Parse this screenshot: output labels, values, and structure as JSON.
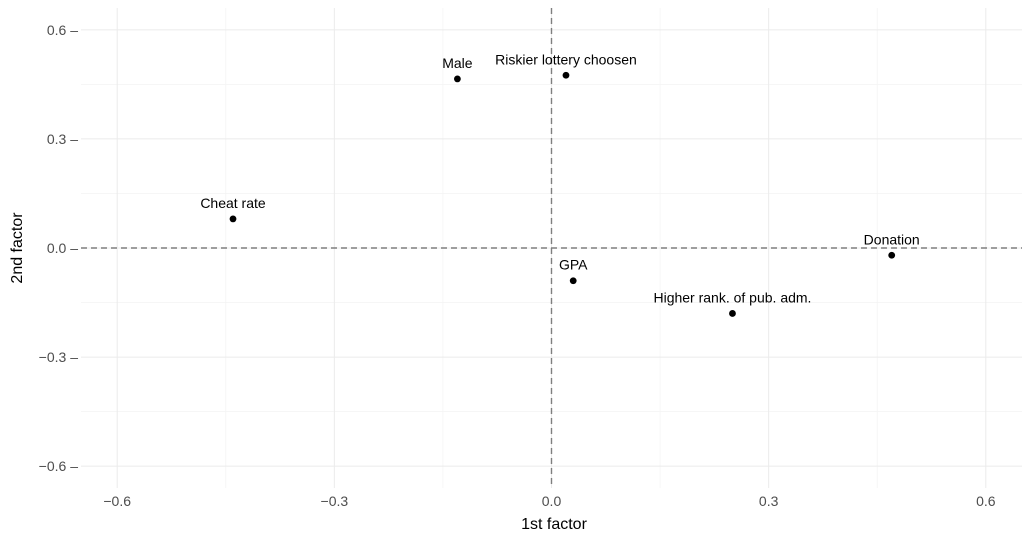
{
  "chart_data": {
    "type": "scatter",
    "title": "",
    "xlabel": "1st factor",
    "ylabel": "2nd factor",
    "xlim": [
      -0.65,
      0.65
    ],
    "ylim": [
      -0.66,
      0.66
    ],
    "x_ticks": [
      -0.6,
      -0.3,
      0.0,
      0.3,
      0.6
    ],
    "x_tick_labels": [
      "−0.6",
      "−0.3",
      "0.0",
      "0.3",
      "0.6"
    ],
    "y_ticks": [
      -0.6,
      -0.3,
      0.0,
      0.3,
      0.6
    ],
    "y_tick_labels": [
      "−0.6 –",
      "−0.3 –",
      "0.0 –",
      "0.3 –",
      "0.6 –"
    ],
    "grid": true,
    "reference_lines": {
      "x": 0,
      "y": 0,
      "style": "dashed"
    },
    "points": [
      {
        "label": "Male",
        "x": -0.13,
        "y": 0.465
      },
      {
        "label": "Riskier lottery choosen",
        "x": 0.02,
        "y": 0.475
      },
      {
        "label": "Cheat rate",
        "x": -0.44,
        "y": 0.08
      },
      {
        "label": "Donation",
        "x": 0.47,
        "y": -0.02
      },
      {
        "label": "GPA",
        "x": 0.03,
        "y": -0.09
      },
      {
        "label": "Higher rank. of pub. adm.",
        "x": 0.25,
        "y": -0.18
      }
    ],
    "point_color": "#000000"
  }
}
